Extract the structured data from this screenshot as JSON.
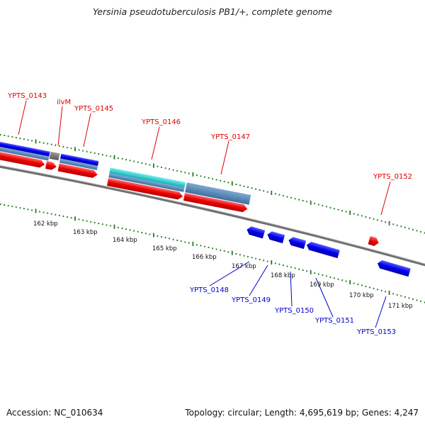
{
  "header": {
    "title": "Yersinia pseudotuberculosis PB1/+, complete genome"
  },
  "footer": {
    "accession": "Accession: NC_010634",
    "summary": "Topology: circular; Length: 4,695,619 bp; Genes: 4,247"
  },
  "colors": {
    "forward_cds": "#0000ee",
    "reverse_cds": "#ee0000",
    "gene_band": "#4f86b8",
    "rna_band": "#28c8c8",
    "tick": "#1f7a1f",
    "backbone": "#7a7a7a",
    "red_label": "#e00000",
    "blue_label": "#0000d0"
  },
  "diagram": {
    "forward_labels": [
      "YPTS_0143",
      "ilvM",
      "YPTS_0145",
      "YPTS_0146",
      "YPTS_0147",
      "YPTS_0152"
    ],
    "reverse_labels": [
      "YPTS_0148",
      "YPTS_0149",
      "YPTS_0150",
      "YPTS_0151",
      "YPTS_0153"
    ],
    "scale_ticks": [
      "162 kbp",
      "163 kbp",
      "164 kbp",
      "165 kbp",
      "166 kbp",
      "167 kbp",
      "168 kbp",
      "169 kbp",
      "170 kbp",
      "171 kbp"
    ]
  }
}
